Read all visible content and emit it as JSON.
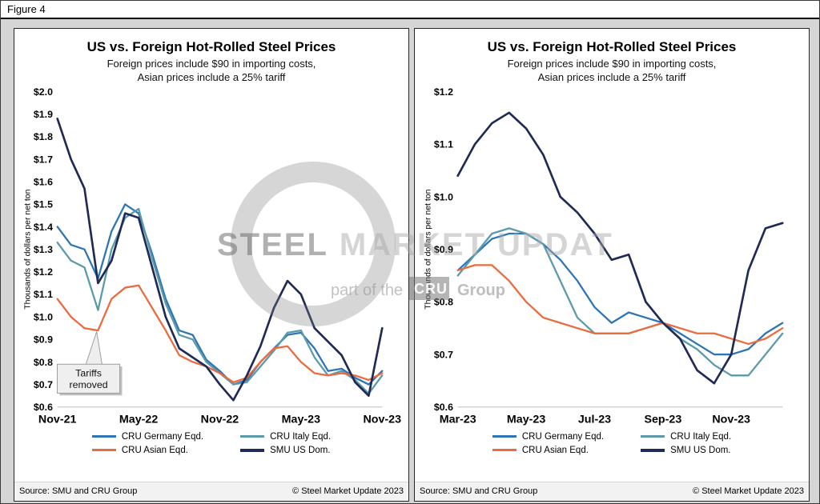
{
  "figure": {
    "label": "Figure 4"
  },
  "watermark": {
    "word1": "STEEL",
    "word2": "MARKET",
    "word3": "UPDATE",
    "part_pre": "part of the",
    "box_label": "CRU",
    "part_post": "Group"
  },
  "chart_data": [
    {
      "type": "line",
      "title": "US vs. Foreign Hot-Rolled Steel Prices",
      "subtitle": [
        "Foreign prices include $90 in importing costs,",
        "Asian prices include a 25% tariff"
      ],
      "ylabel": "Thousands of dollars per net ton",
      "ylim": [
        0.6,
        2.0
      ],
      "y_step": 0.1,
      "y_tick_prefix": "$",
      "xlim": [
        0,
        24
      ],
      "x_unit": "months since Nov-21",
      "x_ticks": [
        {
          "pos": 0,
          "label": "Nov-21"
        },
        {
          "pos": 6,
          "label": "May-22"
        },
        {
          "pos": 12,
          "label": "Nov-22"
        },
        {
          "pos": 18,
          "label": "May-23"
        },
        {
          "pos": 24,
          "label": "Nov-23"
        }
      ],
      "grid": false,
      "legend_position": "bottom",
      "series": [
        {
          "name": "CRU Germany Eqd.",
          "color": "#2E75B6",
          "stroke_width": 2.4,
          "values": [
            1.4,
            1.32,
            1.3,
            1.17,
            1.38,
            1.5,
            1.46,
            1.28,
            1.08,
            0.94,
            0.92,
            0.81,
            0.76,
            0.7,
            0.72,
            0.8,
            0.86,
            0.92,
            0.93,
            0.86,
            0.76,
            0.77,
            0.73,
            0.7,
            0.76
          ]
        },
        {
          "name": "CRU Italy Eqd.",
          "color": "#5B9AA9",
          "stroke_width": 2.4,
          "values": [
            1.33,
            1.25,
            1.22,
            1.03,
            1.3,
            1.44,
            1.48,
            1.26,
            1.06,
            0.92,
            0.9,
            0.8,
            0.75,
            0.7,
            0.71,
            0.78,
            0.85,
            0.93,
            0.94,
            0.82,
            0.74,
            0.76,
            0.72,
            0.66,
            0.74
          ]
        },
        {
          "name": "CRU Asian Eqd.",
          "color": "#EC6B3E",
          "stroke_width": 2.4,
          "values": [
            1.08,
            1.0,
            0.95,
            0.94,
            1.08,
            1.13,
            1.14,
            1.04,
            0.94,
            0.83,
            0.8,
            0.78,
            0.75,
            0.71,
            0.73,
            0.8,
            0.86,
            0.87,
            0.8,
            0.75,
            0.74,
            0.75,
            0.74,
            0.72,
            0.75
          ]
        },
        {
          "name": "SMU US Dom.",
          "color": "#1F2A56",
          "stroke_width": 2.8,
          "values": [
            1.88,
            1.7,
            1.57,
            1.15,
            1.25,
            1.46,
            1.44,
            1.22,
            1.0,
            0.86,
            0.82,
            0.78,
            0.7,
            0.63,
            0.74,
            0.87,
            1.04,
            1.16,
            1.1,
            0.95,
            0.89,
            0.83,
            0.71,
            0.65,
            0.95
          ]
        }
      ],
      "annotation": {
        "lines": [
          "Tariffs",
          "removed"
        ],
        "anchor_x": 2.3,
        "tip_x": 2.9,
        "tip_y": 0.935,
        "box_top": 0.79
      },
      "source_left": "Source: SMU and CRU Group",
      "source_right": "© Steel Market Update 2023"
    },
    {
      "type": "line",
      "title": "US vs. Foreign Hot-Rolled Steel Prices",
      "subtitle": [
        "Foreign prices include $90 in importing costs,",
        "Asian prices include a 25% tariff"
      ],
      "ylabel": "Thousands of dollars per net ton",
      "ylim": [
        0.6,
        1.2
      ],
      "y_step": 0.1,
      "y_tick_prefix": "$",
      "xlim": [
        0,
        9.5
      ],
      "x_unit": "months since Mar-23",
      "x_ticks": [
        {
          "pos": 0,
          "label": "Mar-23"
        },
        {
          "pos": 2,
          "label": "May-23"
        },
        {
          "pos": 4,
          "label": "Jul-23"
        },
        {
          "pos": 6,
          "label": "Sep-23"
        },
        {
          "pos": 8,
          "label": "Nov-23"
        }
      ],
      "grid": false,
      "legend_position": "bottom",
      "series": [
        {
          "name": "CRU Germany Eqd.",
          "color": "#2E75B6",
          "stroke_width": 2.4,
          "values": [
            0.86,
            0.89,
            0.92,
            0.93,
            0.93,
            0.91,
            0.88,
            0.84,
            0.79,
            0.76,
            0.78,
            0.77,
            0.76,
            0.74,
            0.72,
            0.7,
            0.7,
            0.71,
            0.74,
            0.76
          ]
        },
        {
          "name": "CRU Italy Eqd.",
          "color": "#5B9AA9",
          "stroke_width": 2.4,
          "values": [
            0.85,
            0.89,
            0.93,
            0.94,
            0.93,
            0.91,
            0.84,
            0.77,
            0.74,
            0.74,
            0.74,
            0.75,
            0.76,
            0.73,
            0.71,
            0.68,
            0.66,
            0.66,
            0.7,
            0.74
          ]
        },
        {
          "name": "CRU Asian Eqd.",
          "color": "#EC6B3E",
          "stroke_width": 2.4,
          "values": [
            0.86,
            0.87,
            0.87,
            0.84,
            0.8,
            0.77,
            0.76,
            0.75,
            0.74,
            0.74,
            0.74,
            0.75,
            0.76,
            0.75,
            0.74,
            0.74,
            0.73,
            0.72,
            0.73,
            0.75
          ]
        },
        {
          "name": "SMU US Dom.",
          "color": "#1F2A56",
          "stroke_width": 2.8,
          "values": [
            1.04,
            1.1,
            1.14,
            1.16,
            1.13,
            1.08,
            1.0,
            0.97,
            0.93,
            0.88,
            0.89,
            0.8,
            0.76,
            0.73,
            0.67,
            0.645,
            0.7,
            0.86,
            0.94,
            0.95
          ]
        }
      ],
      "source_left": "Source: SMU and CRU Group",
      "source_right": "© Steel Market Update 2023"
    }
  ]
}
